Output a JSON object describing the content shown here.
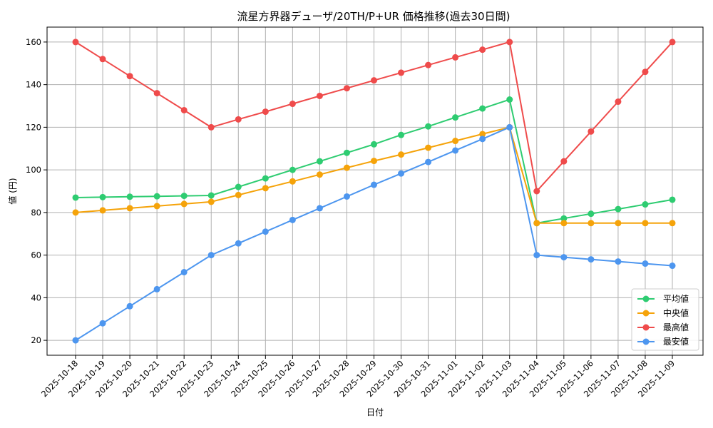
{
  "chart_data": {
    "type": "line",
    "title": "流星方界器デューザ/20TH/P+UR 価格推移(過去30日間)",
    "xlabel": "日付",
    "ylabel": "値 (円)",
    "categories": [
      "2025-10-18",
      "2025-10-19",
      "2025-10-20",
      "2025-10-21",
      "2025-10-22",
      "2025-10-23",
      "2025-10-24",
      "2025-10-25",
      "2025-10-26",
      "2025-10-27",
      "2025-10-28",
      "2025-10-29",
      "2025-10-30",
      "2025-10-31",
      "2025-11-01",
      "2025-11-02",
      "2025-11-03",
      "2025-11-04",
      "2025-11-05",
      "2025-11-06",
      "2025-11-07",
      "2025-11-08",
      "2025-11-09"
    ],
    "ylim": [
      13,
      167
    ],
    "yticks": [
      20,
      40,
      60,
      80,
      100,
      120,
      140,
      160
    ],
    "grid": true,
    "legend_position": "bottom-right",
    "series": [
      {
        "name": "平均値",
        "color": "#2ecc71",
        "values": [
          87,
          87.2,
          87.4,
          87.6,
          87.8,
          88,
          92,
          96,
          100,
          104,
          108,
          112,
          116.4,
          120.4,
          124.6,
          128.8,
          133,
          75,
          77.2,
          79.4,
          81.6,
          83.8,
          86
        ]
      },
      {
        "name": "中央値",
        "color": "#f5a30a",
        "values": [
          80,
          81,
          82,
          83,
          84,
          85,
          88.2,
          91.4,
          94.6,
          97.8,
          101,
          104.2,
          107.2,
          110.4,
          113.6,
          116.8,
          120,
          75,
          75,
          75,
          75,
          75,
          75
        ]
      },
      {
        "name": "最高値",
        "color": "#ef4b4b",
        "values": [
          160,
          152,
          144,
          136,
          128,
          120,
          123.7,
          127.3,
          131,
          134.7,
          138.3,
          142,
          145.6,
          149.2,
          152.8,
          156.4,
          160,
          90,
          104,
          118,
          132,
          146,
          160
        ]
      },
      {
        "name": "最安値",
        "color": "#4d96ef",
        "values": [
          20,
          28,
          36,
          44,
          52,
          60,
          65.5,
          71,
          76.5,
          82,
          87.5,
          93,
          98.3,
          103.7,
          109.1,
          114.5,
          120,
          60,
          59,
          58,
          57,
          56,
          55
        ]
      }
    ]
  }
}
